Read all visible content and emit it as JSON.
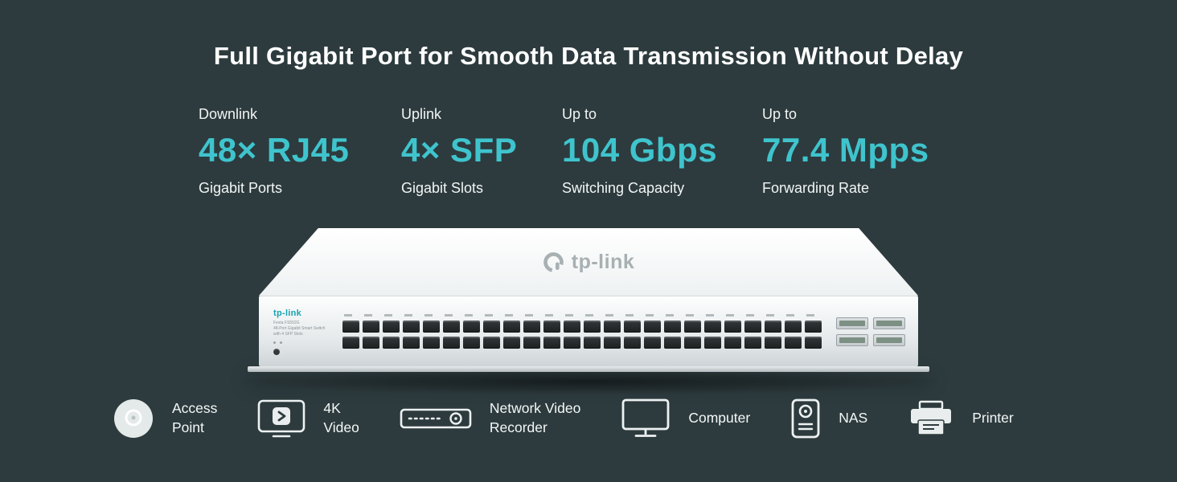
{
  "page": {
    "bg": "#2d3b3e",
    "accent": "#3fc4cd",
    "title": "Full Gigabit Port for Smooth Data Transmission Without Delay"
  },
  "stats": [
    {
      "label": "Downlink",
      "value": "48× RJ45",
      "sub": "Gigabit Ports"
    },
    {
      "label": "Uplink",
      "value": "4× SFP",
      "sub": "Gigabit Slots"
    },
    {
      "label": "Up to",
      "value": "104 Gbps",
      "sub": "Switching Capacity"
    },
    {
      "label": "Up to",
      "value": "77.4 Mpps",
      "sub": "Forwarding Rate"
    }
  ],
  "switch": {
    "brand": "tp-link",
    "model_text": "Festa FS552G\n48-Port Gigabit Smart Switch\nwith 4 SFP Slots",
    "port_rows": 2,
    "port_cols": 24,
    "sfp_slots": 4
  },
  "devices": [
    {
      "name": "access-point",
      "label": "Access\nPoint"
    },
    {
      "name": "4k-video",
      "label": "4K\nVideo"
    },
    {
      "name": "network-video-recorder",
      "label": "Network Video\nRecorder"
    },
    {
      "name": "computer",
      "label": "Computer"
    },
    {
      "name": "nas",
      "label": "NAS"
    },
    {
      "name": "printer",
      "label": "Printer"
    }
  ]
}
